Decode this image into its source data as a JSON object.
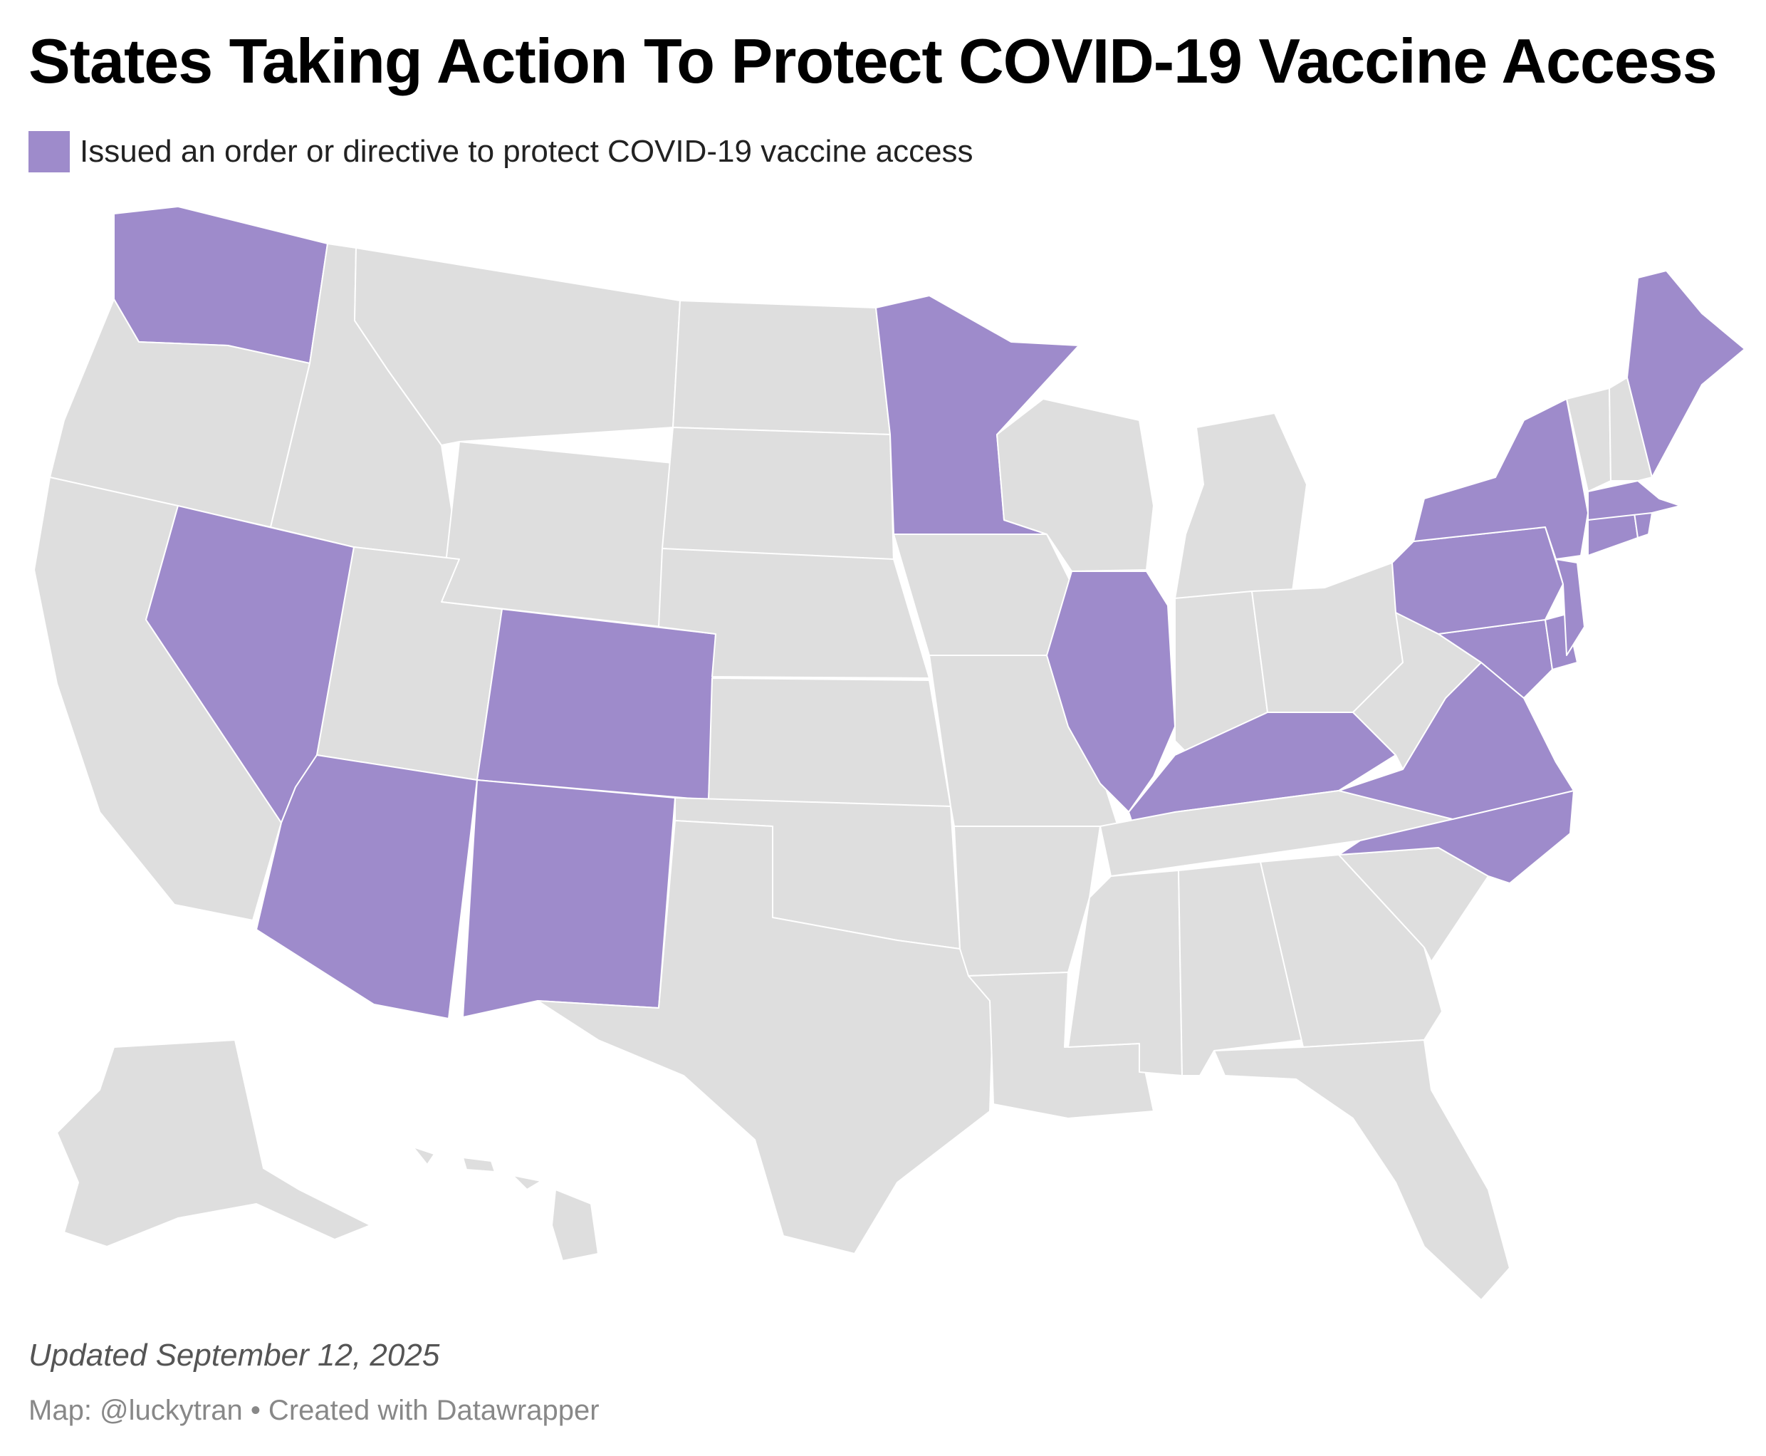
{
  "title": "States Taking Action To Protect COVID-19 Vaccine Access",
  "legend": {
    "label": "Issued an order or directive to protect COVID-19 vaccine access",
    "color": "#9e8bcb"
  },
  "colors": {
    "highlight": "#9e8bcb",
    "other": "#dedede",
    "border": "#ffffff"
  },
  "states": [
    {
      "name": "Washington",
      "highlighted": true
    },
    {
      "name": "Oregon",
      "highlighted": false
    },
    {
      "name": "California",
      "highlighted": false
    },
    {
      "name": "Nevada",
      "highlighted": true
    },
    {
      "name": "Idaho",
      "highlighted": false
    },
    {
      "name": "Montana",
      "highlighted": false
    },
    {
      "name": "Wyoming",
      "highlighted": false
    },
    {
      "name": "Utah",
      "highlighted": false
    },
    {
      "name": "Arizona",
      "highlighted": true
    },
    {
      "name": "Colorado",
      "highlighted": true
    },
    {
      "name": "New Mexico",
      "highlighted": true
    },
    {
      "name": "North Dakota",
      "highlighted": false
    },
    {
      "name": "South Dakota",
      "highlighted": false
    },
    {
      "name": "Nebraska",
      "highlighted": false
    },
    {
      "name": "Kansas",
      "highlighted": false
    },
    {
      "name": "Oklahoma",
      "highlighted": false
    },
    {
      "name": "Texas",
      "highlighted": false
    },
    {
      "name": "Minnesota",
      "highlighted": true
    },
    {
      "name": "Iowa",
      "highlighted": false
    },
    {
      "name": "Missouri",
      "highlighted": false
    },
    {
      "name": "Arkansas",
      "highlighted": false
    },
    {
      "name": "Louisiana",
      "highlighted": false
    },
    {
      "name": "Wisconsin",
      "highlighted": false
    },
    {
      "name": "Illinois",
      "highlighted": true
    },
    {
      "name": "Michigan",
      "highlighted": false
    },
    {
      "name": "Indiana",
      "highlighted": false
    },
    {
      "name": "Ohio",
      "highlighted": false
    },
    {
      "name": "Kentucky",
      "highlighted": true
    },
    {
      "name": "Tennessee",
      "highlighted": false
    },
    {
      "name": "Mississippi",
      "highlighted": false
    },
    {
      "name": "Alabama",
      "highlighted": false
    },
    {
      "name": "Georgia",
      "highlighted": false
    },
    {
      "name": "Florida",
      "highlighted": false
    },
    {
      "name": "South Carolina",
      "highlighted": false
    },
    {
      "name": "North Carolina",
      "highlighted": true
    },
    {
      "name": "Virginia",
      "highlighted": true
    },
    {
      "name": "West Virginia",
      "highlighted": false
    },
    {
      "name": "Maryland",
      "highlighted": true
    },
    {
      "name": "Delaware",
      "highlighted": true
    },
    {
      "name": "Pennsylvania",
      "highlighted": true
    },
    {
      "name": "New Jersey",
      "highlighted": true
    },
    {
      "name": "New York",
      "highlighted": true
    },
    {
      "name": "Connecticut",
      "highlighted": true
    },
    {
      "name": "Rhode Island",
      "highlighted": true
    },
    {
      "name": "Massachusetts",
      "highlighted": true
    },
    {
      "name": "Vermont",
      "highlighted": false
    },
    {
      "name": "New Hampshire",
      "highlighted": false
    },
    {
      "name": "Maine",
      "highlighted": true
    },
    {
      "name": "Alaska",
      "highlighted": false
    },
    {
      "name": "Hawaii",
      "highlighted": false
    }
  ],
  "footer": {
    "note": "Updated September 12, 2025",
    "credit": "Map: @luckytran • Created with Datawrapper"
  }
}
